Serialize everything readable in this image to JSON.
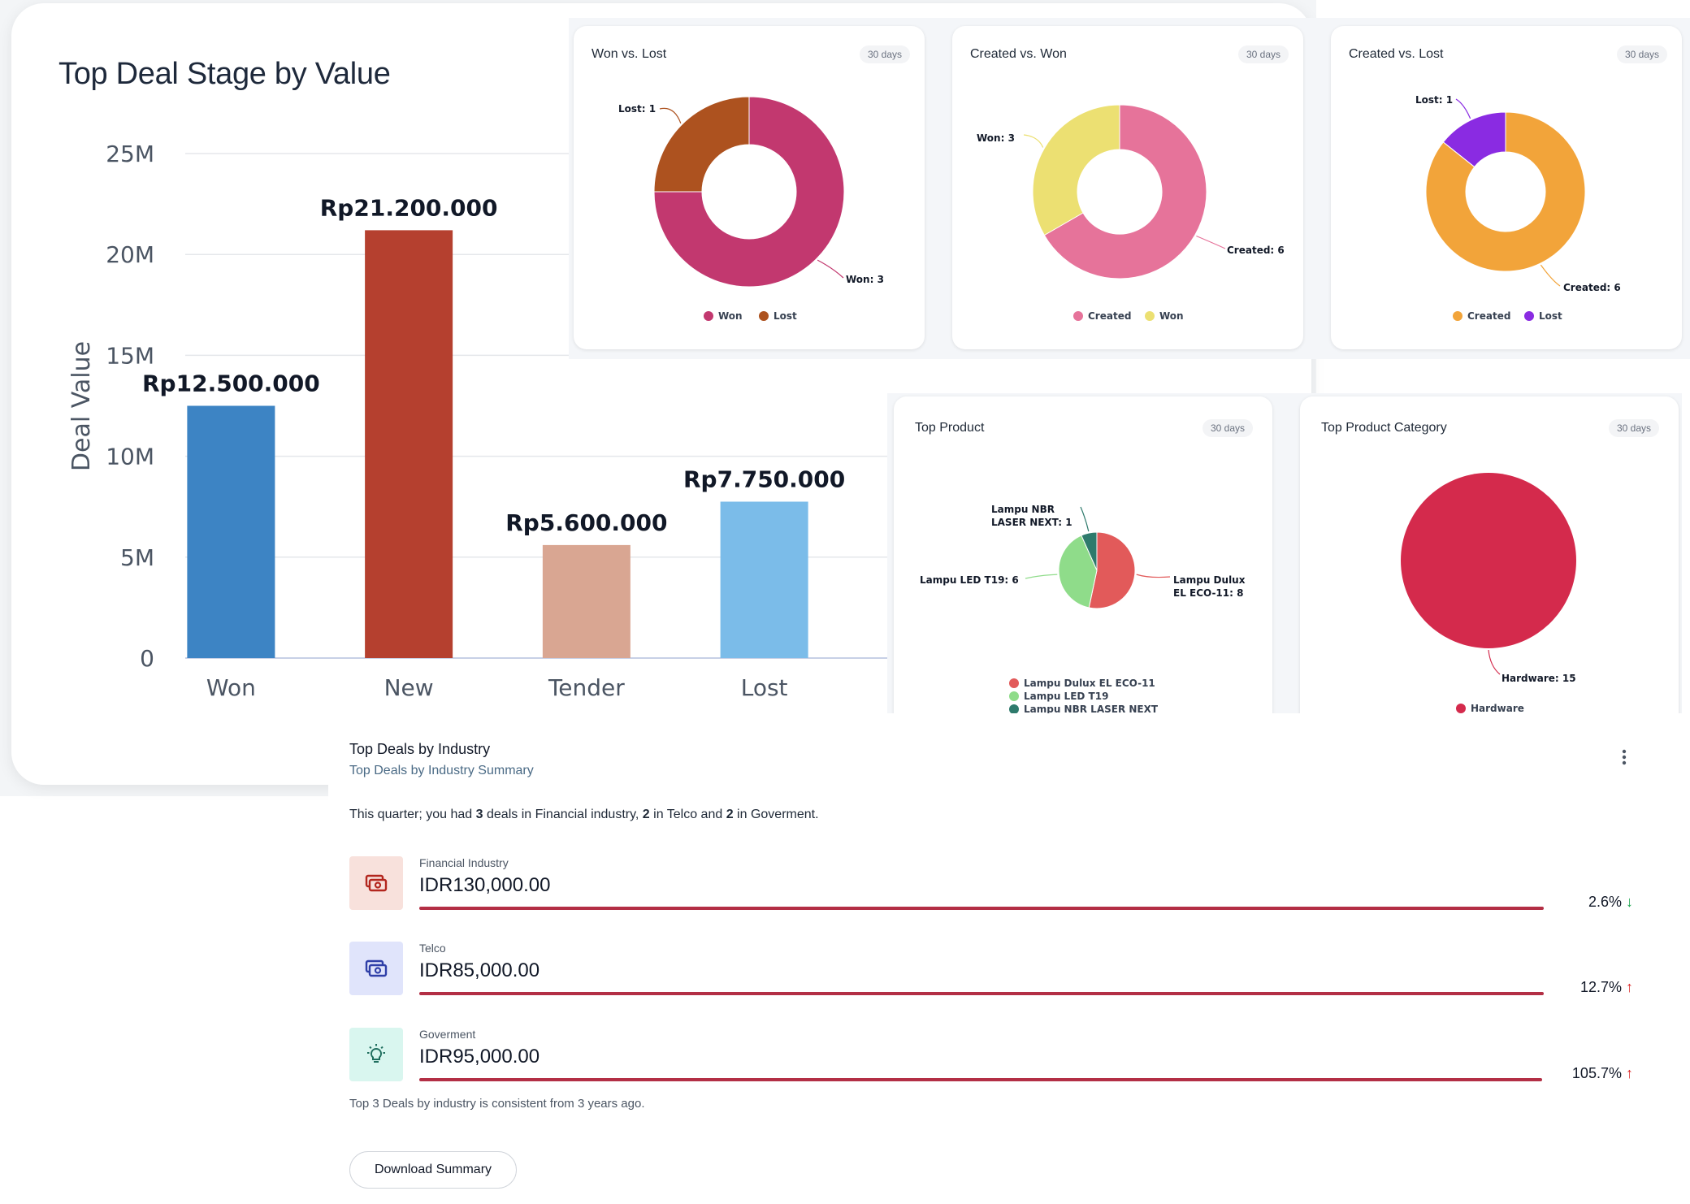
{
  "chart_data": [
    {
      "id": "deal-stage",
      "type": "bar",
      "title": "Top Deal Stage by Value",
      "ylabel": "Deal Value",
      "xlabel": "",
      "categories": [
        "Won",
        "New",
        "Tender",
        "Lost"
      ],
      "values": [
        12500000,
        21200000,
        5600000,
        7750000
      ],
      "value_labels": [
        "Rp12.500.000",
        "Rp21.200.000",
        "Rp5.600.000",
        "Rp7.750.000"
      ],
      "colors": [
        "#3d84c4",
        "#b5402f",
        "#d9a692",
        "#7bbce9"
      ],
      "ylim": [
        0,
        25000000
      ],
      "yticks": [
        0,
        5000000,
        10000000,
        15000000,
        20000000,
        25000000
      ],
      "ytick_labels": [
        "0",
        "5M",
        "10M",
        "15M",
        "20M",
        "25M"
      ],
      "grid": true
    },
    {
      "id": "won-lost",
      "type": "pie",
      "donut": true,
      "title": "Won vs. Lost",
      "period": "30 days",
      "slices": [
        {
          "label": "Won",
          "value": 3,
          "color": "#c2386f",
          "callout": "Won: 3"
        },
        {
          "label": "Lost",
          "value": 1,
          "color": "#ad521f",
          "callout": "Lost: 1"
        }
      ]
    },
    {
      "id": "created-won",
      "type": "pie",
      "donut": true,
      "title": "Created vs. Won",
      "period": "30 days",
      "slices": [
        {
          "label": "Created",
          "value": 6,
          "color": "#e6739a",
          "callout": "Created: 6"
        },
        {
          "label": "Won",
          "value": 3,
          "color": "#ece072",
          "callout": "Won: 3"
        }
      ]
    },
    {
      "id": "created-lost",
      "type": "pie",
      "donut": true,
      "title": "Created vs. Lost",
      "period": "30 days",
      "slices": [
        {
          "label": "Created",
          "value": 6,
          "color": "#f2a43a",
          "callout": "Created: 6"
        },
        {
          "label": "Lost",
          "value": 1,
          "color": "#8a2be2",
          "callout": "Lost: 1"
        }
      ]
    },
    {
      "id": "top-product",
      "type": "pie",
      "donut": false,
      "title": "Top Product",
      "period": "30 days",
      "slices": [
        {
          "label": "Lampu Dulux EL ECO-11",
          "value": 8,
          "color": "#e25a5a",
          "callout_lines": [
            "Lampu Dulux",
            "EL ECO-11: 8"
          ]
        },
        {
          "label": "Lampu LED T19",
          "value": 6,
          "color": "#8fdc8a",
          "callout_lines": [
            "Lampu LED T19: 6"
          ]
        },
        {
          "label": "Lampu NBR LASER NEXT",
          "value": 1,
          "color": "#2e7a6c",
          "callout_lines": [
            "Lampu NBR",
            "LASER NEXT: 1"
          ]
        }
      ]
    },
    {
      "id": "top-category",
      "type": "pie",
      "donut": false,
      "title": "Top Product Category",
      "period": "30 days",
      "slices": [
        {
          "label": "Hardware",
          "value": 15,
          "color": "#d42a4c",
          "callout": "Hardware: 15"
        }
      ]
    }
  ],
  "industry": {
    "title": "Top Deals by Industry",
    "subtitle": "Top Deals by Industry Summary",
    "summary_parts": [
      "This quarter; you had ",
      "3",
      " deals in Financial industry, ",
      "2",
      " in Telco and ",
      "2",
      " in Goverment."
    ],
    "items": [
      {
        "label": "Financial Industry",
        "value": "IDR130,000.00",
        "pct": "2.6%",
        "arrow": "↓",
        "direction": "down",
        "icon": "cash-icon",
        "icon_bg": "#f8e1dc",
        "icon_color": "#b3261e"
      },
      {
        "label": "Telco",
        "value": "IDR85,000.00",
        "pct": "12.7%",
        "arrow": "↑",
        "direction": "up",
        "icon": "cash-icon",
        "icon_bg": "#e0e4fb",
        "icon_color": "#2f3fa8"
      },
      {
        "label": "Goverment",
        "value": "IDR95,000.00",
        "pct": "105.7%",
        "arrow": "↑",
        "direction": "up",
        "icon": "lightbulb-icon",
        "icon_bg": "#d9f6ef",
        "icon_color": "#1f6e5e"
      }
    ],
    "footnote": "Top 3 Deals by industry is consistent from 3 years ago.",
    "download_label": "Download Summary",
    "menu_icon": "kebab-menu-icon"
  }
}
